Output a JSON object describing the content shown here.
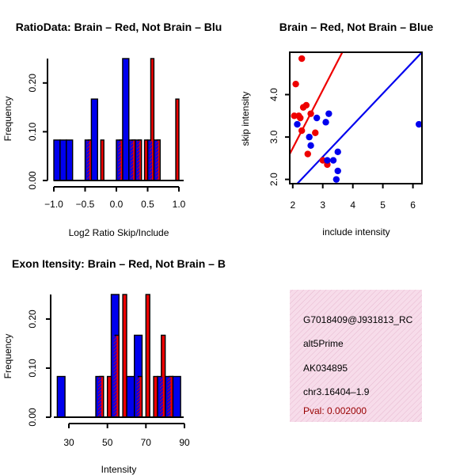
{
  "chart_data": [
    {
      "type": "bar",
      "title": "RatioData: Brain – Red, Not Brain – Blu",
      "xlabel": "Log2 Ratio Skip/Include",
      "ylabel": "Frequency",
      "xlim": [
        -1.0,
        1.0
      ],
      "ylim": [
        0,
        0.25
      ],
      "xticks": [
        "−1.0",
        "−0.5",
        "0.0",
        "0.5",
        "1.0"
      ],
      "yticks": [
        "0.00",
        "0.10",
        "0.20"
      ],
      "bin_width": 0.1,
      "series": [
        {
          "name": "Not Brain",
          "color": "#0000ee",
          "bins": [
            [
              -1.0,
              0.083
            ],
            [
              -0.9,
              0.083
            ],
            [
              -0.8,
              0.083
            ],
            [
              -0.5,
              0.083
            ],
            [
              -0.4,
              0.167
            ],
            [
              0.0,
              0.083
            ],
            [
              0.1,
              0.25
            ],
            [
              0.2,
              0.083
            ],
            [
              0.3,
              0.083
            ],
            [
              0.5,
              0.083
            ],
            [
              0.6,
              0.083
            ]
          ]
        },
        {
          "name": "Brain",
          "color": "#ee0000",
          "bins": [
            [
              -0.5,
              0.083
            ],
            [
              -0.3,
              0.083
            ],
            [
              0.0,
              0.083
            ],
            [
              0.2,
              0.083
            ],
            [
              0.3,
              0.083
            ],
            [
              0.4,
              0.083
            ],
            [
              0.5,
              0.25
            ],
            [
              0.6,
              0.083
            ],
            [
              0.9,
              0.167
            ]
          ]
        }
      ]
    },
    {
      "type": "scatter",
      "title": "Brain – Red, Not Brain – Blue",
      "xlabel": "include intensity",
      "ylabel": "skip intensity",
      "xlim": [
        1.9,
        6.3
      ],
      "ylim": [
        1.8,
        4.9
      ],
      "xticks": [
        "2",
        "3",
        "4",
        "5",
        "6"
      ],
      "yticks": [
        "2.0",
        "3.0",
        "4.0"
      ],
      "series": [
        {
          "name": "Brain",
          "color": "#ee0000",
          "points": [
            [
              2.3,
              4.75
            ],
            [
              2.1,
              4.15
            ],
            [
              2.05,
              3.4
            ],
            [
              2.25,
              3.35
            ],
            [
              2.35,
              3.6
            ],
            [
              2.45,
              3.65
            ],
            [
              2.2,
              3.4
            ],
            [
              2.6,
              3.45
            ],
            [
              2.3,
              3.05
            ],
            [
              2.75,
              3.0
            ],
            [
              2.5,
              2.5
            ],
            [
              3.0,
              2.35
            ],
            [
              3.15,
              2.25
            ]
          ]
        },
        {
          "name": "Not Brain",
          "color": "#0000ee",
          "points": [
            [
              2.15,
              3.2
            ],
            [
              2.8,
              3.35
            ],
            [
              3.1,
              3.25
            ],
            [
              3.2,
              3.45
            ],
            [
              2.55,
              2.9
            ],
            [
              2.6,
              2.7
            ],
            [
              3.5,
              2.55
            ],
            [
              3.15,
              2.35
            ],
            [
              3.35,
              2.35
            ],
            [
              3.5,
              2.1
            ],
            [
              3.45,
              1.9
            ],
            [
              6.2,
              3.2
            ]
          ]
        }
      ],
      "lines": [
        {
          "name": "Brain fit",
          "color": "#ee0000",
          "from": [
            1.9,
            2.5
          ],
          "to": [
            3.65,
            4.9
          ]
        },
        {
          "name": "Not Brain fit",
          "color": "#0000ee",
          "from": [
            2.15,
            1.8
          ],
          "to": [
            6.3,
            4.9
          ]
        }
      ]
    },
    {
      "type": "bar",
      "title": "Exon Itensity: Brain – Red, Not Brain – B",
      "xlabel": "Intensity",
      "ylabel": "Frequency",
      "xlim": [
        22,
        90
      ],
      "ylim": [
        0,
        0.25
      ],
      "xticks": [
        "30",
        "50",
        "70",
        "90"
      ],
      "yticks": [
        "0.00",
        "0.10",
        "0.20"
      ],
      "bin_width": 4,
      "series": [
        {
          "name": "Not Brain",
          "color": "#0000ee",
          "bins": [
            [
              24,
              0.083
            ],
            [
              44,
              0.083
            ],
            [
              52,
              0.25
            ],
            [
              60,
              0.083
            ],
            [
              64,
              0.167
            ],
            [
              76,
              0.083
            ],
            [
              80,
              0.083
            ],
            [
              84,
              0.083
            ]
          ]
        },
        {
          "name": "Brain",
          "color": "#ee0000",
          "bins": [
            [
              44,
              0.083
            ],
            [
              48,
              0.083
            ],
            [
              52,
              0.167
            ],
            [
              56,
              0.25
            ],
            [
              64,
              0.083
            ],
            [
              68,
              0.25
            ],
            [
              72,
              0.083
            ],
            [
              76,
              0.167
            ],
            [
              80,
              0.083
            ]
          ]
        }
      ]
    }
  ],
  "info_panel": {
    "probe_id": "G7018409@J931813_RC",
    "event_type": "alt5Prime",
    "accession": "AK034895",
    "location": "chr3.16404–1.9",
    "pval": "Pval: 0.002000",
    "pval_color": "#990000",
    "background": "#f7dcea"
  }
}
